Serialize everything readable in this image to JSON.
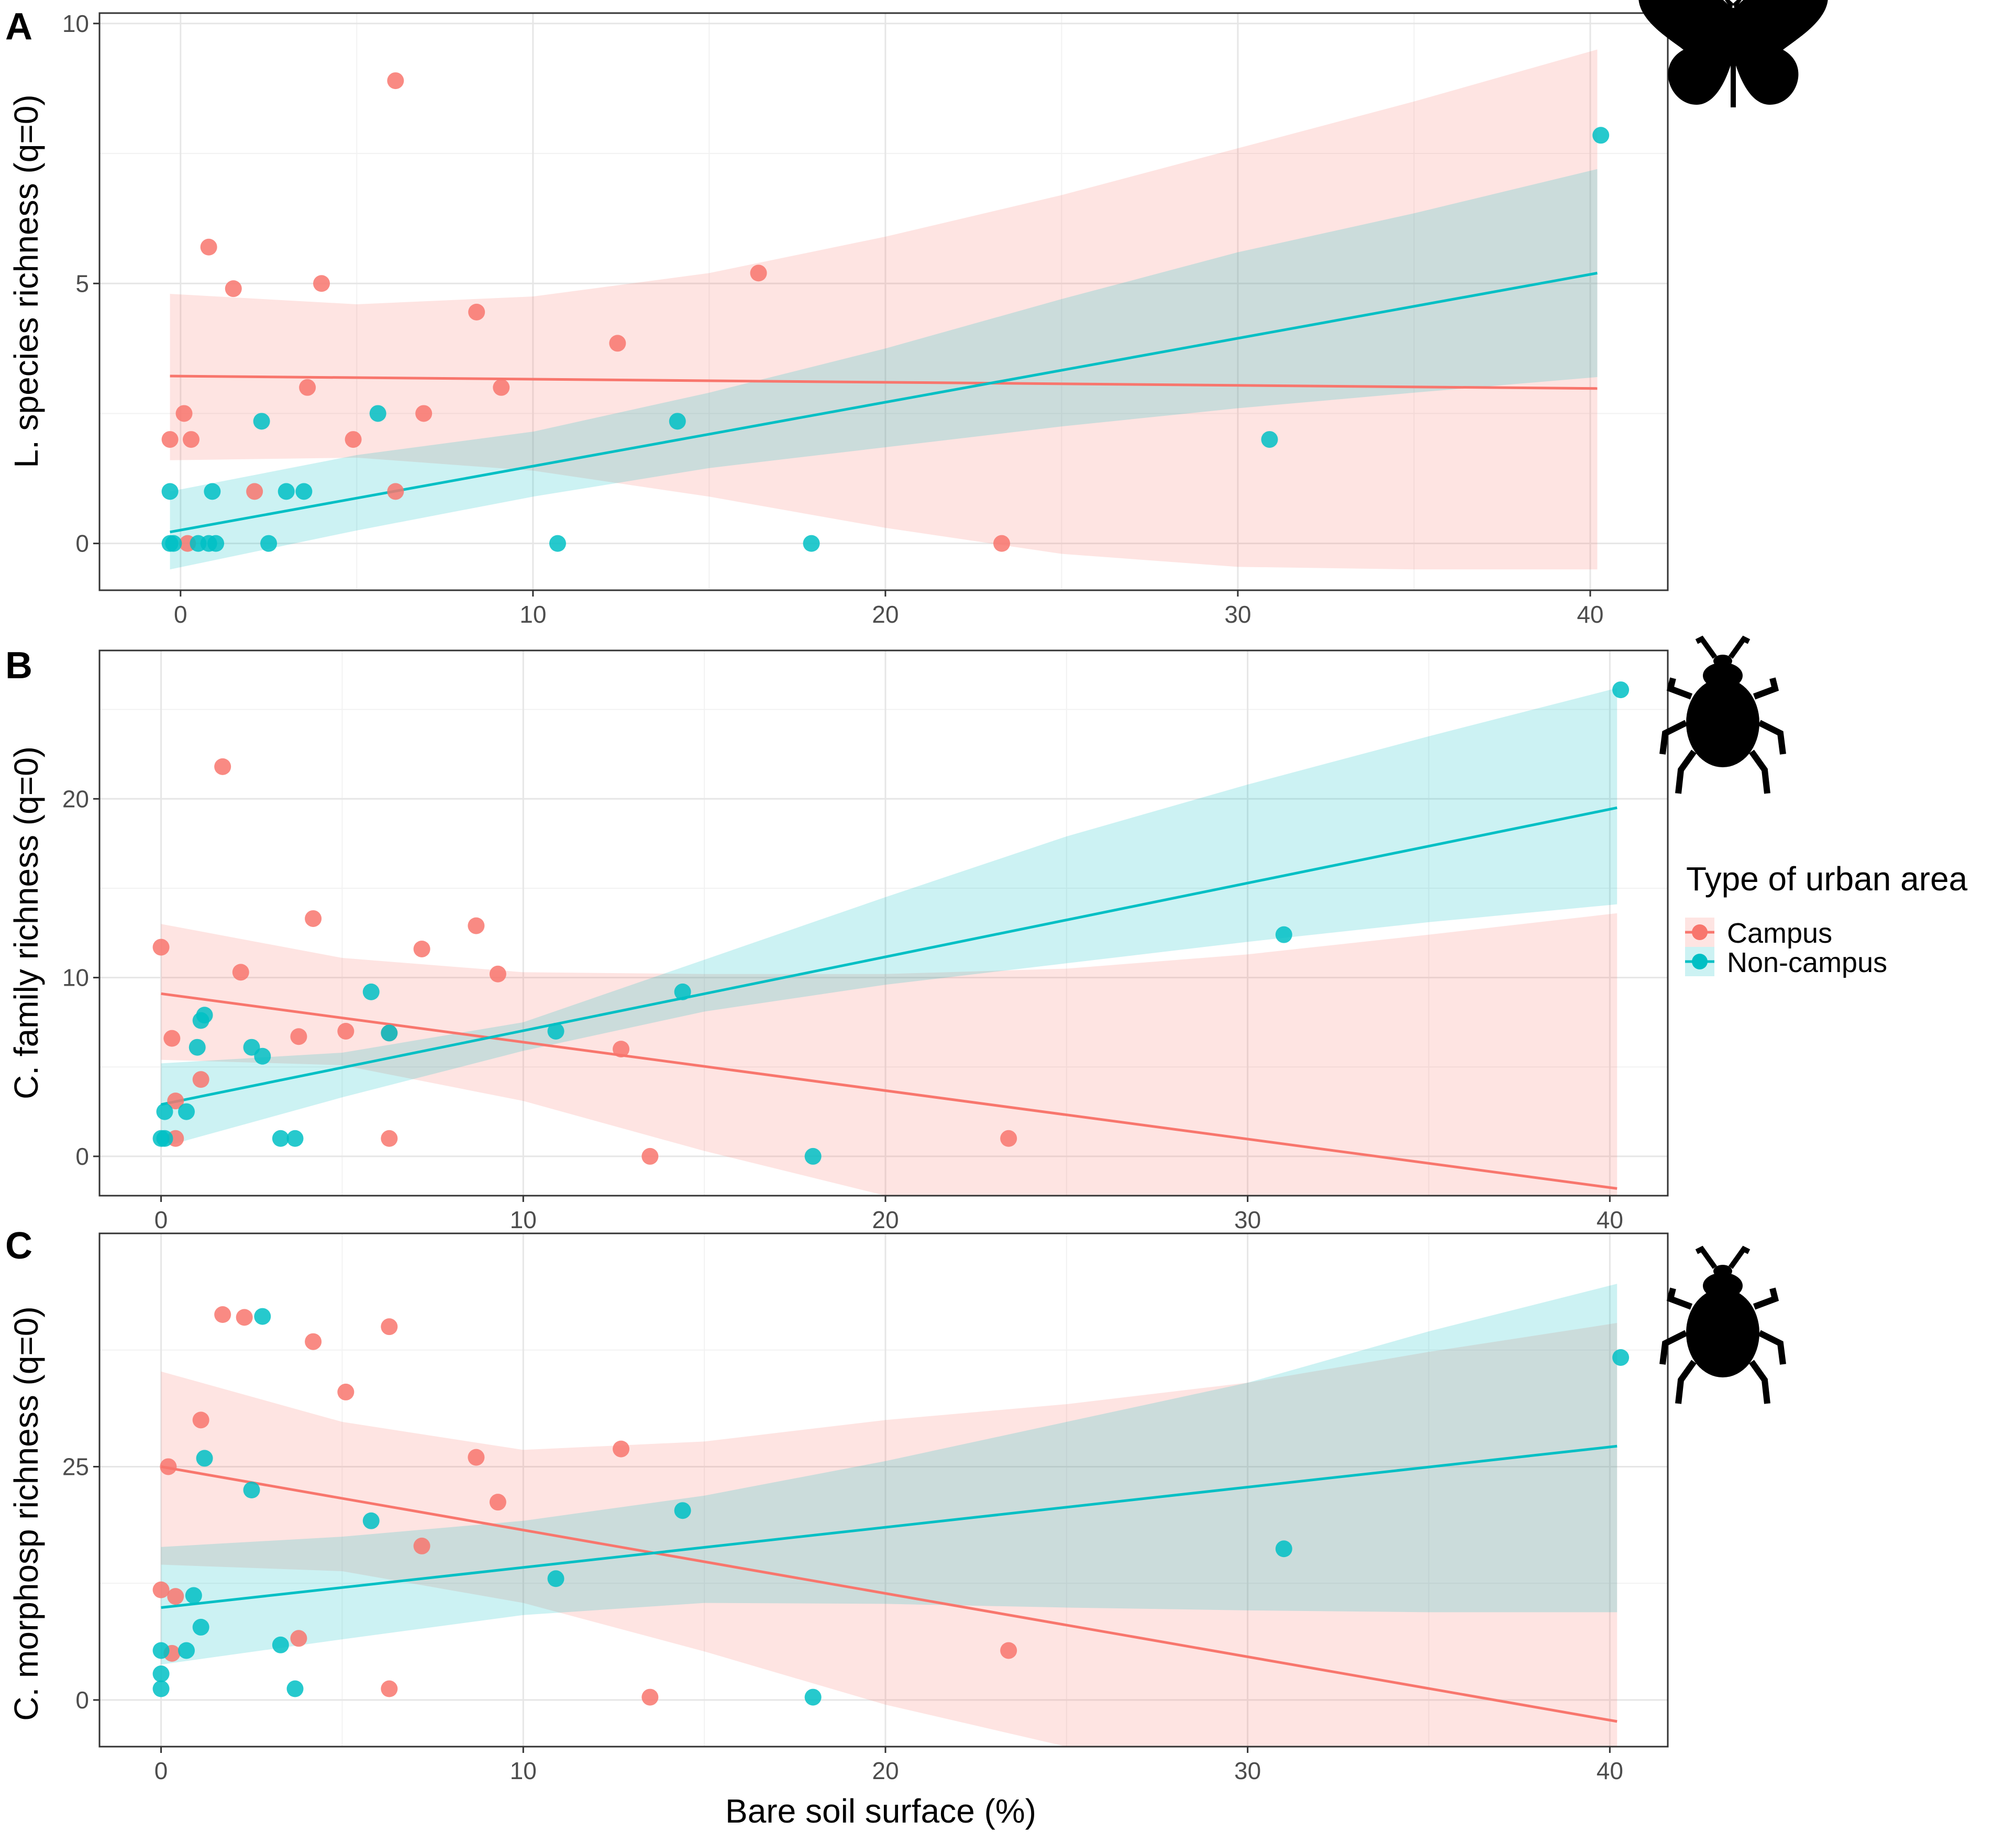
{
  "figure": {
    "x_axis_title": "Bare soil surface (%)",
    "legend": {
      "title": "Type of urban area",
      "entries": [
        {
          "label": "Campus",
          "color": "#F8766D"
        },
        {
          "label": "Non-campus",
          "color": "#00BFC4"
        }
      ]
    }
  },
  "chart_data": [
    {
      "panel": "A",
      "type": "scatter",
      "icon": "butterfly-icon",
      "ylabel": "L. species richness (q=0)",
      "xlabel": "",
      "xlim": [
        -2.3,
        42.2
      ],
      "ylim": [
        -0.9,
        10.2
      ],
      "xticks": [
        0,
        10,
        20,
        30,
        40
      ],
      "yticks": [
        0,
        5,
        10
      ],
      "grid": true,
      "series": [
        {
          "name": "Campus",
          "color": "#F8766D",
          "points": [
            [
              -0.3,
              2
            ],
            [
              0.1,
              2.5
            ],
            [
              0.2,
              0
            ],
            [
              0.3,
              2
            ],
            [
              0.8,
              5.7
            ],
            [
              1.5,
              4.9
            ],
            [
              2.1,
              1
            ],
            [
              4.0,
              5.0
            ],
            [
              3.6,
              3
            ],
            [
              4.9,
              2
            ],
            [
              6.1,
              8.9
            ],
            [
              6.1,
              1
            ],
            [
              6.9,
              2.5
            ],
            [
              8.4,
              4.45
            ],
            [
              9.1,
              3
            ],
            [
              12.4,
              3.85
            ],
            [
              16.4,
              5.2
            ],
            [
              23.3,
              0
            ]
          ],
          "fit": [
            [
              -0.3,
              3.22
            ],
            [
              40.2,
              2.98
            ]
          ],
          "ci_lower": [
            [
              -0.3,
              1.6
            ],
            [
              5,
              1.65
            ],
            [
              10,
              1.4
            ],
            [
              15,
              0.9
            ],
            [
              20,
              0.3
            ],
            [
              25,
              -0.2
            ],
            [
              30,
              -0.45
            ],
            [
              35,
              -0.5
            ],
            [
              40.2,
              -0.5
            ]
          ],
          "ci_upper": [
            [
              -0.3,
              4.8
            ],
            [
              5,
              4.6
            ],
            [
              10,
              4.75
            ],
            [
              15,
              5.2
            ],
            [
              20,
              5.9
            ],
            [
              25,
              6.7
            ],
            [
              30,
              7.6
            ],
            [
              35,
              8.5
            ],
            [
              40.2,
              9.5
            ]
          ]
        },
        {
          "name": "Non-campus",
          "color": "#00BFC4",
          "points": [
            [
              -0.3,
              1
            ],
            [
              -0.3,
              0
            ],
            [
              -0.2,
              0
            ],
            [
              0.5,
              0
            ],
            [
              0.8,
              0
            ],
            [
              1.0,
              0
            ],
            [
              0.9,
              1
            ],
            [
              2.3,
              2.35
            ],
            [
              2.5,
              0
            ],
            [
              3.0,
              1
            ],
            [
              3.5,
              1
            ],
            [
              5.6,
              2.5
            ],
            [
              10.7,
              0
            ],
            [
              14.1,
              2.35
            ],
            [
              17.9,
              0
            ],
            [
              30.9,
              2
            ],
            [
              40.3,
              7.85
            ]
          ],
          "fit": [
            [
              -0.3,
              0.22
            ],
            [
              40.2,
              5.2
            ]
          ],
          "ci_lower": [
            [
              -0.3,
              -0.5
            ],
            [
              5,
              0.25
            ],
            [
              10,
              0.9
            ],
            [
              15,
              1.45
            ],
            [
              20,
              1.85
            ],
            [
              25,
              2.25
            ],
            [
              30,
              2.6
            ],
            [
              35,
              2.9
            ],
            [
              40.2,
              3.2
            ]
          ],
          "ci_upper": [
            [
              -0.3,
              1.0
            ],
            [
              5,
              1.7
            ],
            [
              10,
              2.15
            ],
            [
              15,
              2.9
            ],
            [
              20,
              3.75
            ],
            [
              25,
              4.7
            ],
            [
              30,
              5.6
            ],
            [
              35,
              6.35
            ],
            [
              40.2,
              7.2
            ]
          ]
        }
      ]
    },
    {
      "panel": "B",
      "type": "scatter",
      "icon": "beetle-icon",
      "ylabel": "C. family richness (q=0)",
      "xlabel": "",
      "xlim": [
        -1.7,
        41.6
      ],
      "ylim": [
        -2.2,
        28.3
      ],
      "xticks": [
        0,
        10,
        20,
        30,
        40
      ],
      "yticks": [
        0,
        10,
        20
      ],
      "grid": true,
      "series": [
        {
          "name": "Campus",
          "color": "#F8766D",
          "points": [
            [
              0.0,
              11.7
            ],
            [
              0.3,
              6.6
            ],
            [
              0.4,
              1
            ],
            [
              0.4,
              3.1
            ],
            [
              1.1,
              4.3
            ],
            [
              1.7,
              21.8
            ],
            [
              2.2,
              10.3
            ],
            [
              3.8,
              6.7
            ],
            [
              4.2,
              13.3
            ],
            [
              5.1,
              7.0
            ],
            [
              6.3,
              6.9
            ],
            [
              6.3,
              1
            ],
            [
              7.2,
              11.6
            ],
            [
              8.7,
              12.9
            ],
            [
              9.3,
              10.2
            ],
            [
              12.7,
              6.0
            ],
            [
              13.5,
              0
            ],
            [
              23.4,
              1
            ]
          ],
          "fit": [
            [
              0,
              9.1
            ],
            [
              40.2,
              -1.8
            ]
          ],
          "ci_lower": [
            [
              0,
              5.4
            ],
            [
              5,
              5.1
            ],
            [
              10,
              3.1
            ],
            [
              15,
              0.3
            ],
            [
              20,
              -2.2
            ],
            [
              25,
              -2.2
            ],
            [
              30,
              -2.2
            ],
            [
              35,
              -2.2
            ],
            [
              40.2,
              -2.2
            ]
          ],
          "ci_upper": [
            [
              0,
              13.0
            ],
            [
              5,
              11.1
            ],
            [
              10,
              10.3
            ],
            [
              15,
              10.2
            ],
            [
              20,
              10.2
            ],
            [
              25,
              10.5
            ],
            [
              30,
              11.3
            ],
            [
              35,
              12.4
            ],
            [
              40.2,
              13.6
            ]
          ]
        },
        {
          "name": "Non-campus",
          "color": "#00BFC4",
          "points": [
            [
              0.0,
              1
            ],
            [
              0.1,
              1
            ],
            [
              0.1,
              2.5
            ],
            [
              0.7,
              2.5
            ],
            [
              1.0,
              6.1
            ],
            [
              1.1,
              7.6
            ],
            [
              1.2,
              7.9
            ],
            [
              2.5,
              6.1
            ],
            [
              2.8,
              5.6
            ],
            [
              3.3,
              1
            ],
            [
              3.7,
              1
            ],
            [
              5.8,
              9.2
            ],
            [
              6.3,
              6.9
            ],
            [
              10.9,
              7.0
            ],
            [
              14.4,
              9.2
            ],
            [
              18.0,
              0
            ],
            [
              31.0,
              12.4
            ],
            [
              40.3,
              26.1
            ]
          ],
          "fit": [
            [
              0,
              2.9
            ],
            [
              40.2,
              19.5
            ]
          ],
          "ci_lower": [
            [
              0,
              0.5
            ],
            [
              5,
              3.3
            ],
            [
              10,
              5.9
            ],
            [
              15,
              8.1
            ],
            [
              20,
              9.6
            ],
            [
              25,
              10.8
            ],
            [
              30,
              12.0
            ],
            [
              35,
              13.1
            ],
            [
              40.2,
              14.1
            ]
          ],
          "ci_upper": [
            [
              0,
              5.2
            ],
            [
              5,
              5.8
            ],
            [
              10,
              7.5
            ],
            [
              15,
              11.0
            ],
            [
              20,
              14.5
            ],
            [
              25,
              17.9
            ],
            [
              30,
              20.8
            ],
            [
              35,
              23.5
            ],
            [
              40.2,
              26.2
            ]
          ]
        }
      ]
    },
    {
      "panel": "C",
      "type": "scatter",
      "icon": "beetle-icon",
      "ylabel": "C. morphosp richness (q=0)",
      "xlabel": "Bare soil surface (%)",
      "xlim": [
        -1.7,
        41.6
      ],
      "ylim": [
        -5,
        50
      ],
      "xticks": [
        0,
        10,
        20,
        30,
        40
      ],
      "yticks": [
        0,
        25
      ],
      "grid": true,
      "series": [
        {
          "name": "Campus",
          "color": "#F8766D",
          "points": [
            [
              0.0,
              11.8
            ],
            [
              0.2,
              25
            ],
            [
              0.3,
              5
            ],
            [
              0.4,
              11.1
            ],
            [
              1.1,
              30
            ],
            [
              1.7,
              41.3
            ],
            [
              2.3,
              41
            ],
            [
              3.8,
              6.6
            ],
            [
              4.2,
              38.4
            ],
            [
              5.1,
              33
            ],
            [
              6.3,
              40
            ],
            [
              6.3,
              1.2
            ],
            [
              7.2,
              16.5
            ],
            [
              8.7,
              26
            ],
            [
              9.3,
              21.2
            ],
            [
              12.7,
              26.9
            ],
            [
              13.5,
              0.3
            ],
            [
              23.4,
              5.3
            ]
          ],
          "fit": [
            [
              0,
              25
            ],
            [
              40.2,
              -2.3
            ]
          ],
          "ci_lower": [
            [
              0,
              14.5
            ],
            [
              5,
              13.8
            ],
            [
              10,
              10.4
            ],
            [
              15,
              5.2
            ],
            [
              20,
              -0.5
            ],
            [
              25,
              -5
            ],
            [
              30,
              -5
            ],
            [
              35,
              -5
            ],
            [
              40.2,
              -5
            ]
          ],
          "ci_upper": [
            [
              0,
              35.2
            ],
            [
              5,
              29.8
            ],
            [
              10,
              26.8
            ],
            [
              15,
              27.7
            ],
            [
              20,
              30
            ],
            [
              25,
              31.7
            ],
            [
              30,
              34
            ],
            [
              35,
              37.3
            ],
            [
              40.2,
              40.4
            ]
          ]
        },
        {
          "name": "Non-campus",
          "color": "#00BFC4",
          "points": [
            [
              0.0,
              1.2
            ],
            [
              0.0,
              2.8
            ],
            [
              0.0,
              5.3
            ],
            [
              0.7,
              5.3
            ],
            [
              0.9,
              11.2
            ],
            [
              1.1,
              7.8
            ],
            [
              1.2,
              25.9
            ],
            [
              2.5,
              22.5
            ],
            [
              2.8,
              41.1
            ],
            [
              3.3,
              5.9
            ],
            [
              3.7,
              1.2
            ],
            [
              5.8,
              19.2
            ],
            [
              10.9,
              13
            ],
            [
              14.4,
              20.3
            ],
            [
              18.0,
              0.3
            ],
            [
              31.0,
              16.2
            ],
            [
              40.3,
              36.7
            ]
          ],
          "fit": [
            [
              0,
              9.9
            ],
            [
              40.2,
              27.2
            ]
          ],
          "ci_lower": [
            [
              0,
              3.8
            ],
            [
              5,
              6.5
            ],
            [
              10,
              9.1
            ],
            [
              15,
              10.4
            ],
            [
              20,
              10.3
            ],
            [
              25,
              9.9
            ],
            [
              30,
              9.6
            ],
            [
              35,
              9.4
            ],
            [
              40.2,
              9.4
            ]
          ],
          "ci_upper": [
            [
              0,
              16.4
            ],
            [
              5,
              17.5
            ],
            [
              10,
              19.2
            ],
            [
              15,
              21.9
            ],
            [
              20,
              25.6
            ],
            [
              25,
              29.8
            ],
            [
              30,
              34
            ],
            [
              35,
              39.5
            ],
            [
              40.2,
              44.6
            ]
          ]
        }
      ]
    }
  ]
}
